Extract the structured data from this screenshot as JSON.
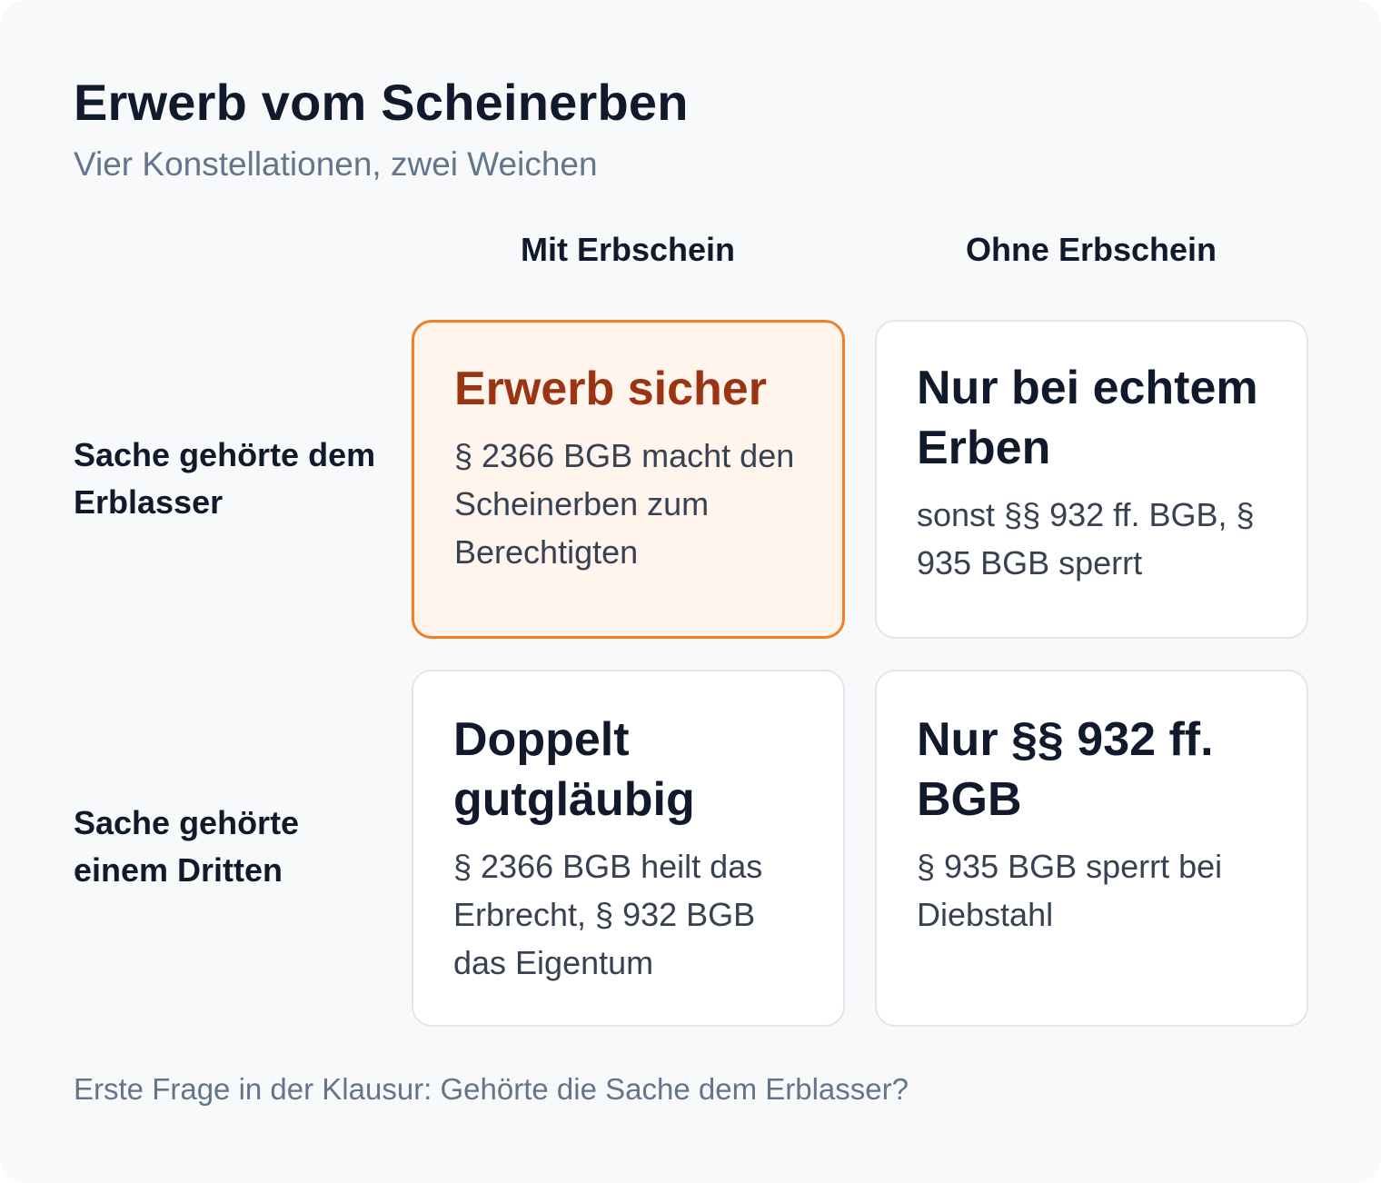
{
  "title": "Erwerb vom Scheinerben",
  "subtitle": "Vier Konstellationen, zwei Weichen",
  "columns": [
    "Mit Erbschein",
    "Ohne Erbschein"
  ],
  "rows": [
    "Sache gehörte dem Erblasser",
    "Sache gehörte einem Dritten"
  ],
  "cells": [
    {
      "heading": "Erwerb sicher",
      "text": "§ 2366 BGB macht den Scheinerben zum Berechtigten",
      "highlighted": true,
      "accent_color": "#f57d24",
      "heading_color": "#9a3412"
    },
    {
      "heading": "Nur bei echtem Erben",
      "text": "sonst §§ 932 ff. BGB, § 935 BGB sperrt",
      "highlighted": false
    },
    {
      "heading": "Doppelt gutgläubig",
      "text": "§ 2366 BGB heilt das Erbrecht, § 932 BGB das Eigentum",
      "highlighted": false
    },
    {
      "heading": "Nur §§ 932 ff. BGB",
      "text": "§ 935 BGB sperrt bei Diebstahl",
      "highlighted": false
    }
  ],
  "footer": "Erste Frage in der Klausur: Gehörte die Sache dem Erblasser?"
}
